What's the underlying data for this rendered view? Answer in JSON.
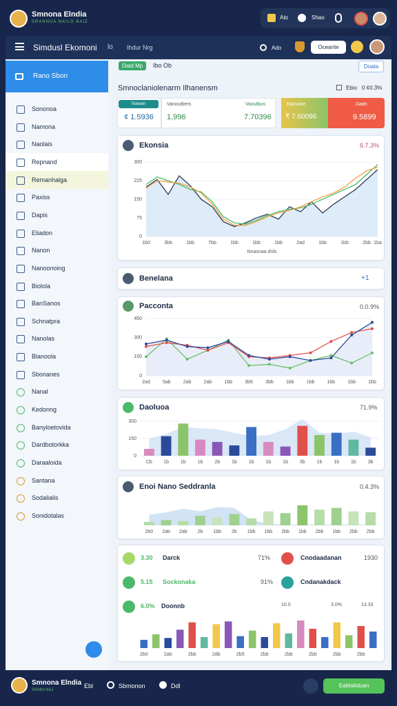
{
  "header": {
    "brand": "Smnona Elndia",
    "tagline": "SRANNUA NAILO BAIZ",
    "top_actions": [
      "Ato",
      "Shao"
    ],
    "nav_title": "Simdusl Ekomoni",
    "nav_tag": "lo",
    "nav_sub": "Ihdur Nrg",
    "nav_link": "Ado",
    "nav_button": "Oceante"
  },
  "sidebar": {
    "active": "Rano Sbon",
    "items": [
      "Sononoa",
      "Namona",
      "Naolais",
      "Repnand",
      "Remanhalga",
      "Paxiss",
      "Dapis",
      "Eliadon",
      "Nanon",
      "Nanoonoing",
      "Biolola",
      "BanSanos",
      "Schnatpra",
      "Nanolas",
      "Blanoola",
      "Sbonanes",
      "Nanal",
      "Kedonng",
      "Banyloetovida",
      "Dardbotorkka",
      "Daraaloida",
      "Santana",
      "Sodalialis",
      "Sonidotalas"
    ]
  },
  "main": {
    "tag": "Datd Mp",
    "tag_note": "Ibo Ob",
    "action": "Doata",
    "heading": "Smnoclaniolenarm Ilhanensm",
    "heading_meta": "Ebio",
    "heading_value": "0 ¢0.3%",
    "stats": [
      {
        "label": "Soaaon",
        "value": "¢ 1.5936"
      },
      {
        "label": "Vanoutbers",
        "value": "1,996"
      },
      {
        "label": "Vaoutbus",
        "value": "7.70396"
      },
      {
        "label": "Eaoucke",
        "value": "₹ 7.60096"
      },
      {
        "label": "Dadn",
        "value": "9.5899"
      }
    ],
    "collapsed": {
      "title": "Benelana",
      "control": "+1"
    },
    "list": [
      {
        "lead": "3.30",
        "name": "Darck",
        "value": "71%"
      },
      {
        "name": "Cnodaadanan",
        "value": "1930"
      },
      {
        "lead": "5.15",
        "name": "Sockonaka",
        "value": "91%"
      },
      {
        "name": "Cndanakdack"
      },
      {
        "lead": "6.0%",
        "name": "Doonnb",
        "value": "10.0",
        "extra": "3.0%",
        "total": "13.33"
      }
    ]
  },
  "footer": {
    "brand": "Smnona Elndia",
    "tagline": "SAMIA NAJ",
    "links": [
      "Ebl",
      "Sbmonon",
      "Ddl"
    ],
    "button": "Eablaliiduan"
  },
  "chart_data": [
    {
      "type": "line",
      "title": "Ekonsia",
      "annotation": "6.7.3%",
      "x_label": "Nnasnaa dnls",
      "categories": [
        "1b0",
        null,
        "3bb",
        null,
        "1bb",
        null,
        "7bb",
        null,
        "1bb",
        null,
        "1bb",
        null,
        "1bb",
        null,
        "2ad",
        null,
        "1bb",
        null,
        "1bb",
        null,
        "2bb",
        "1ba"
      ],
      "ylim": [
        0,
        320
      ],
      "yticks": [
        0,
        75,
        150,
        225,
        300
      ],
      "grid": true,
      "series": [
        {
          "color": "#2b3a55",
          "fill": "#d6e6f6",
          "values": [
            200,
            230,
            170,
            245,
            205,
            150,
            120,
            60,
            40,
            55,
            75,
            90,
            70,
            120,
            100,
            140,
            95,
            130,
            160,
            190,
            230,
            270
          ]
        },
        {
          "color": "#4cb86a",
          "values": [
            210,
            240,
            225,
            210,
            190,
            180,
            140,
            80,
            55,
            50,
            65,
            85,
            100,
            110,
            115,
            130,
            150,
            170,
            190,
            210,
            250,
            290
          ]
        },
        {
          "color": "#f0a040",
          "values": [
            195,
            225,
            220,
            215,
            200,
            175,
            130,
            70,
            45,
            45,
            60,
            80,
            95,
            105,
            120,
            140,
            160,
            175,
            200,
            235,
            265,
            280
          ]
        }
      ]
    },
    {
      "type": "line",
      "title": "Pacconta",
      "annotation": "0.0.9%",
      "categories": [
        "2ad",
        "5ab",
        "2ab",
        "2ab",
        "1bb",
        "3b6",
        "3bb",
        "1bb",
        "1bb",
        "1bb",
        "1bb",
        "1bb"
      ],
      "ylim": [
        0,
        450
      ],
      "yticks": [
        0,
        150,
        300,
        450
      ],
      "grid": true,
      "markers": true,
      "series": [
        {
          "color": "#6cbf6a",
          "values": [
            150,
            290,
            130,
            200,
            280,
            80,
            90,
            60,
            120,
            160,
            100,
            180
          ]
        },
        {
          "color": "#e0504a",
          "values": [
            230,
            260,
            240,
            200,
            260,
            150,
            140,
            160,
            180,
            270,
            340,
            370
          ]
        },
        {
          "color": "#2a4a9a",
          "fill": "#e4e8f8",
          "values": [
            250,
            280,
            230,
            220,
            270,
            160,
            130,
            150,
            120,
            140,
            320,
            420
          ]
        }
      ]
    },
    {
      "type": "bar",
      "title": "Daoluoa",
      "annotation": "71.9%",
      "categories": [
        "Cb",
        "1b",
        "1b",
        "1b",
        "2b",
        "1b",
        "1b",
        "1b",
        "1b",
        "3b",
        "1b",
        "1b",
        "1b",
        "3b"
      ],
      "ylim": [
        0,
        330
      ],
      "yticks": [
        0,
        150,
        300
      ],
      "grid": true,
      "values": [
        60,
        170,
        280,
        140,
        120,
        90,
        250,
        120,
        80,
        260,
        180,
        200,
        140,
        70
      ],
      "colors": [
        "#d88ac0",
        "#2a4a9a",
        "#8cc46a",
        "#d88ac0",
        "#8a56b8",
        "#2a4a9a",
        "#3a6fc4",
        "#d88ac0",
        "#8a56b8",
        "#e0504a",
        "#8cc46a",
        "#3a6fc4",
        "#5fb8a0",
        "#2a4a9a"
      ],
      "background": {
        "color": "#cfe1f5",
        "values": [
          150,
          190,
          250,
          240,
          230,
          200,
          170,
          180,
          230,
          320,
          200,
          190,
          210,
          160
        ]
      }
    },
    {
      "type": "bar",
      "title": "Enoi Nano Seddranla",
      "annotation": "0.4.3%",
      "categories": [
        "2b0",
        "2ab",
        "2ab",
        "2b",
        "1bb",
        "2b",
        "1bb",
        "1bb",
        "2bb",
        "1bb",
        "2bb",
        "1bb",
        "2bb",
        "2bb"
      ],
      "ylim": [
        0,
        300
      ],
      "values": [
        40,
        60,
        50,
        110,
        90,
        130,
        80,
        160,
        140,
        230,
        180,
        200,
        160,
        150
      ],
      "colors": [
        "#b6dca8",
        "#9fd08f",
        "#b6dca8",
        "#9fd08f",
        "#c7e3b9",
        "#9fd08f",
        "#b6dca8",
        "#c7e3b9",
        "#9fd08f",
        "#8cc46a",
        "#b6dca8",
        "#9fd08f",
        "#c7e3b9",
        "#b6dca8"
      ],
      "background": {
        "color": "#c7dcf2",
        "values": [
          120,
          150,
          190,
          160,
          210,
          200,
          60,
          20,
          10,
          10,
          10,
          10,
          10,
          10
        ]
      }
    },
    {
      "type": "bar",
      "categories": [
        "2b0",
        null,
        "2ab",
        null,
        "2bb",
        null,
        "2db",
        null,
        "2b5",
        null,
        "2bb",
        null,
        "2bb",
        null,
        "2bb",
        null,
        "2bb",
        null,
        "2bb",
        null
      ],
      "ylim": [
        0,
        300
      ],
      "values": [
        90,
        150,
        110,
        200,
        280,
        120,
        260,
        290,
        130,
        190,
        120,
        270,
        160,
        300,
        210,
        120,
        280,
        140,
        240,
        180
      ],
      "colors": [
        "#3a6fc4",
        "#8cc46a",
        "#2a4a9a",
        "#8a56b8",
        "#e0504a",
        "#5fb8a0",
        "#f2c84b",
        "#8a56b8",
        "#3a6fc4",
        "#8cc46a",
        "#2a4a9a",
        "#f2c84b",
        "#5fb8a0",
        "#d88ac0",
        "#e0504a",
        "#3a6fc4",
        "#f2c84b",
        "#8cc46a",
        "#e0504a",
        "#3a6fc4"
      ]
    }
  ]
}
